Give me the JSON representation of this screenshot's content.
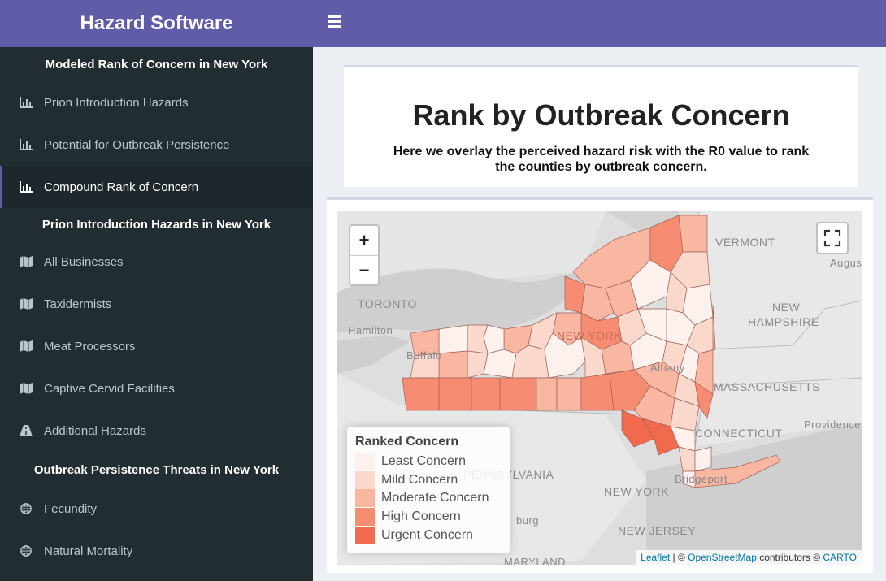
{
  "app": {
    "title": "Hazard Software"
  },
  "sidebar": {
    "headers": [
      "Modeled Rank of Concern in New York",
      "Prion Introduction Hazards in New York",
      "Outbreak Persistence Threats in New York"
    ],
    "items": [
      {
        "label": "Prion Introduction Hazards",
        "icon": "bar-chart-icon"
      },
      {
        "label": "Potential for Outbreak Persistence",
        "icon": "bar-chart-icon"
      },
      {
        "label": "Compound Rank of Concern",
        "icon": "bar-chart-icon",
        "active": true
      },
      {
        "label": "All Businesses",
        "icon": "map-icon"
      },
      {
        "label": "Taxidermists",
        "icon": "map-icon"
      },
      {
        "label": "Meat Processors",
        "icon": "map-icon"
      },
      {
        "label": "Captive Cervid Facilities",
        "icon": "map-icon"
      },
      {
        "label": "Additional Hazards",
        "icon": "road-icon"
      },
      {
        "label": "Fecundity",
        "icon": "globe-icon"
      },
      {
        "label": "Natural Mortality",
        "icon": "globe-icon"
      }
    ]
  },
  "main": {
    "title": "Rank by Outbreak Concern",
    "subtitle": "Here we overlay the perceived hazard risk with the R0 value to rank the counties by outbreak concern."
  },
  "map": {
    "zoom_in": "+",
    "zoom_out": "−",
    "labels": {
      "vermont": "VERMONT",
      "augusta": "Augus",
      "toronto": "TORONTO",
      "new_hampshire_1": "NEW",
      "new_hampshire_2": "HAMPSHIRE",
      "hamilton": "Hamilton",
      "buffalo": "Buffalo",
      "new_york_state": "NEW YORK",
      "albany": "Albany",
      "massachusetts": "MASSACHUSETTS",
      "connecticut": "CONNECTICUT",
      "providence": "Providence",
      "pennsylvania": "PENNSYLVANIA",
      "harrisburg": "burg",
      "bridgeport": "Bridgeport",
      "new_york_city": "NEW YORK",
      "new_jersey": "NEW JERSEY",
      "maryland": "MARYLAND"
    },
    "legend": {
      "title": "Ranked Concern",
      "entries": [
        {
          "label": "Least Concern",
          "color": "#fdf1ee"
        },
        {
          "label": "Mild Concern",
          "color": "#fbd8cc"
        },
        {
          "label": "Moderate Concern",
          "color": "#f9b6a0"
        },
        {
          "label": "High Concern",
          "color": "#f68d72"
        },
        {
          "label": "Urgent Concern",
          "color": "#f26a4e"
        }
      ]
    },
    "attribution": {
      "leaflet": "Leaflet",
      "sep1": " | © ",
      "osm": "OpenStreetMap",
      "mid": " contributors © ",
      "carto": "CARTO"
    }
  }
}
